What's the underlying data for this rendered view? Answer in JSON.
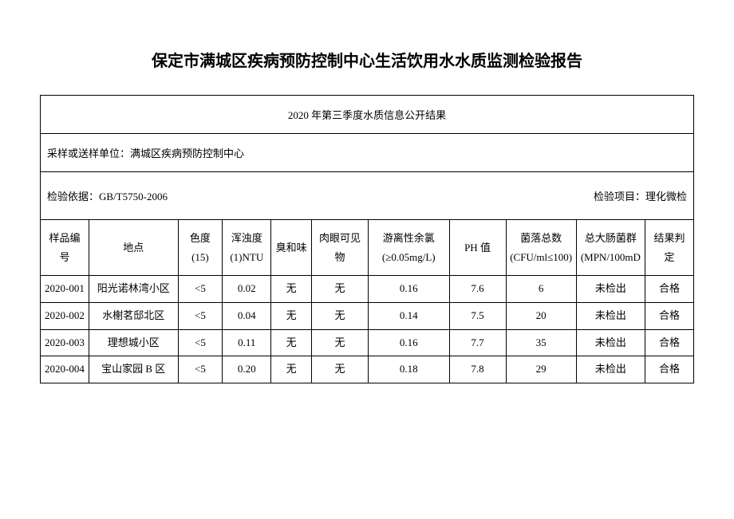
{
  "title": "保定市满城区疾病预防控制中心生活饮用水水质监测检验报告",
  "subtitle": "2020 年第三季度水质信息公开结果",
  "unit_label": "采样或送样单位：",
  "unit_value": "满城区疾病预防控制中心",
  "basis_label": "检验依据：",
  "basis_value": "GB/T5750-2006",
  "project_label": "检验项目：",
  "project_value": "理化微检",
  "columns": {
    "id": "样品编号",
    "location": "地点",
    "color": "色度(15)",
    "turbidity": "浑浊度 (1)NTU",
    "smell": "臭和味",
    "visible": "肉眼可见物",
    "chlorine": "游离性余氯 (≥0.05mg/L)",
    "ph": "PH 值",
    "bacteria": "菌落总数 (CFU/ml≤100)",
    "coliform": "总大肠菌群 (MPN/100mD",
    "result": "结果判定"
  },
  "rows": [
    {
      "id": "2020-001",
      "location": "阳光诺林湾小区",
      "color": "<5",
      "turbidity": "0.02",
      "smell": "无",
      "visible": "无",
      "chlorine": "0.16",
      "ph": "7.6",
      "bacteria": "6",
      "coliform": "未检出",
      "result": "合格"
    },
    {
      "id": "2020-002",
      "location": "水榭茗邸北区",
      "color": "<5",
      "turbidity": "0.04",
      "smell": "无",
      "visible": "无",
      "chlorine": "0.14",
      "ph": "7.5",
      "bacteria": "20",
      "coliform": "未检出",
      "result": "合格"
    },
    {
      "id": "2020-003",
      "location": "理想城小区",
      "color": "<5",
      "turbidity": "0.11",
      "smell": "无",
      "visible": "无",
      "chlorine": "0.16",
      "ph": "7.7",
      "bacteria": "35",
      "coliform": "未检出",
      "result": "合格"
    },
    {
      "id": "2020-004",
      "location": "宝山家园 B 区",
      "color": "<5",
      "turbidity": "0.20",
      "smell": "无",
      "visible": "无",
      "chlorine": "0.18",
      "ph": "7.8",
      "bacteria": "29",
      "coliform": "未检出",
      "result": "合格"
    }
  ]
}
